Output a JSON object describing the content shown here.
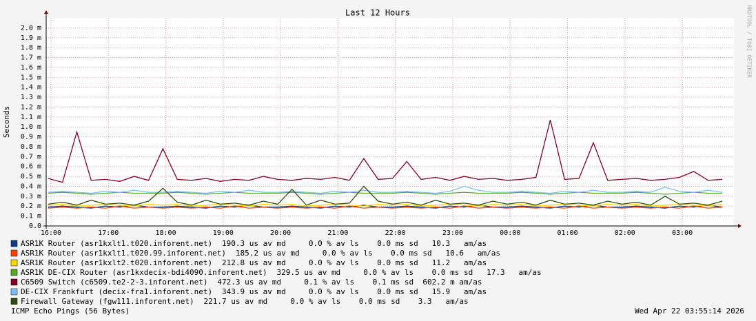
{
  "chart_data": {
    "type": "line",
    "title": "Last 12 Hours",
    "y_label": "Seconds",
    "side_note": "RRDTOOL / TOBI OETIKER",
    "footer_left": "ICMP Echo Pings (56 Bytes)",
    "footer_right": "Wed Apr 22 03:55:14 2026",
    "grid": true,
    "xlim": [
      15.916,
      27.9
    ],
    "xticks": [
      {
        "value": 16,
        "label": "16:00"
      },
      {
        "value": 17,
        "label": "17:00"
      },
      {
        "value": 18,
        "label": "18:00"
      },
      {
        "value": 19,
        "label": "19:00"
      },
      {
        "value": 20,
        "label": "20:00"
      },
      {
        "value": 21,
        "label": "21:00"
      },
      {
        "value": 22,
        "label": "22:00"
      },
      {
        "value": 23,
        "label": "23:00"
      },
      {
        "value": 24,
        "label": "00:00"
      },
      {
        "value": 25,
        "label": "01:00"
      },
      {
        "value": 26,
        "label": "02:00"
      },
      {
        "value": 27,
        "label": "03:00"
      }
    ],
    "ylim": [
      0,
      2.1
    ],
    "yticks": [
      {
        "value": 0,
        "label": "0.0"
      },
      {
        "value": 0.1,
        "label": "0.1 m"
      },
      {
        "value": 0.2,
        "label": "0.2 m"
      },
      {
        "value": 0.3,
        "label": "0.3 m"
      },
      {
        "value": 0.4,
        "label": "0.4 m"
      },
      {
        "value": 0.5,
        "label": "0.5 m"
      },
      {
        "value": 0.6,
        "label": "0.6 m"
      },
      {
        "value": 0.7,
        "label": "0.7 m"
      },
      {
        "value": 0.8,
        "label": "0.8 m"
      },
      {
        "value": 0.9,
        "label": "0.9 m"
      },
      {
        "value": 1.0,
        "label": "1.0 m"
      },
      {
        "value": 1.1,
        "label": "1.1 m"
      },
      {
        "value": 1.2,
        "label": "1.2 m"
      },
      {
        "value": 1.3,
        "label": "1.3 m"
      },
      {
        "value": 1.4,
        "label": "1.4 m"
      },
      {
        "value": 1.5,
        "label": "1.5 m"
      },
      {
        "value": 1.6,
        "label": "1.6 m"
      },
      {
        "value": 1.7,
        "label": "1.7 m"
      },
      {
        "value": 1.8,
        "label": "1.8 m"
      },
      {
        "value": 1.9,
        "label": "1.9 m"
      },
      {
        "value": 2.0,
        "label": "2.0 m"
      }
    ],
    "x": [
      15.95,
      16.2,
      16.45,
      16.7,
      16.95,
      17.2,
      17.45,
      17.7,
      17.95,
      18.2,
      18.45,
      18.7,
      18.95,
      19.2,
      19.45,
      19.7,
      19.95,
      20.2,
      20.45,
      20.7,
      20.95,
      21.2,
      21.45,
      21.7,
      21.95,
      22.2,
      22.45,
      22.7,
      22.95,
      23.2,
      23.45,
      23.7,
      23.95,
      24.2,
      24.45,
      24.7,
      24.95,
      25.2,
      25.45,
      25.7,
      25.95,
      26.2,
      26.45,
      26.7,
      26.95,
      27.2,
      27.45,
      27.7
    ],
    "series": [
      {
        "name": "ASR1K Router (asr1kxlt1.t020.inforent.net)",
        "stats": "190.3 us av md     0.0 % av ls    0.0 ms sd   10.3   am/as",
        "color": "#0b3c8c",
        "values": [
          0.19,
          0.2,
          0.19,
          0.18,
          0.2,
          0.19,
          0.21,
          0.19,
          0.19,
          0.2,
          0.19,
          0.18,
          0.2,
          0.19,
          0.21,
          0.19,
          0.19,
          0.2,
          0.19,
          0.18,
          0.2,
          0.19,
          0.21,
          0.19,
          0.19,
          0.2,
          0.19,
          0.18,
          0.2,
          0.19,
          0.21,
          0.19,
          0.19,
          0.2,
          0.19,
          0.18,
          0.2,
          0.19,
          0.21,
          0.19,
          0.19,
          0.2,
          0.19,
          0.18,
          0.2,
          0.19,
          0.21,
          0.19
        ]
      },
      {
        "name": "ASR1K Router (asr1kxlt1.t020.99.inforent.net)",
        "stats": "185.2 us av md     0.0 % av ls    0.0 ms sd   10.6   am/as",
        "color": "#ff4000",
        "values": [
          0.18,
          0.19,
          0.18,
          0.19,
          0.18,
          0.2,
          0.18,
          0.19,
          0.18,
          0.19,
          0.18,
          0.19,
          0.18,
          0.2,
          0.18,
          0.19,
          0.18,
          0.19,
          0.18,
          0.19,
          0.18,
          0.2,
          0.18,
          0.19,
          0.18,
          0.19,
          0.18,
          0.19,
          0.18,
          0.2,
          0.18,
          0.19,
          0.18,
          0.19,
          0.18,
          0.19,
          0.18,
          0.2,
          0.18,
          0.19,
          0.18,
          0.19,
          0.18,
          0.19,
          0.18,
          0.2,
          0.18,
          0.19
        ]
      },
      {
        "name": "ASR1K Router (asr1kxlt2.t020.inforent.net)",
        "stats": "212.8 us av md     0.0 % av ls    0.0 ms sd   11.2   am/as",
        "color": "#ffd700",
        "values": [
          0.21,
          0.22,
          0.2,
          0.21,
          0.22,
          0.21,
          0.2,
          0.22,
          0.21,
          0.22,
          0.2,
          0.21,
          0.22,
          0.21,
          0.2,
          0.22,
          0.21,
          0.22,
          0.2,
          0.21,
          0.22,
          0.21,
          0.2,
          0.22,
          0.21,
          0.22,
          0.2,
          0.21,
          0.22,
          0.21,
          0.2,
          0.22,
          0.21,
          0.22,
          0.2,
          0.21,
          0.22,
          0.21,
          0.2,
          0.22,
          0.21,
          0.22,
          0.2,
          0.21,
          0.22,
          0.21,
          0.2,
          0.22
        ]
      },
      {
        "name": "ASR1K DE-CIX Router (asr1kxdecix-bdi4090.inforent.net)",
        "stats": "329.5 us av md     0.0 % av ls    0.0 ms sd   17.3   am/as",
        "color": "#55aa22",
        "values": [
          0.33,
          0.34,
          0.33,
          0.32,
          0.33,
          0.34,
          0.33,
          0.33,
          0.33,
          0.34,
          0.33,
          0.32,
          0.33,
          0.34,
          0.33,
          0.33,
          0.33,
          0.34,
          0.33,
          0.32,
          0.33,
          0.34,
          0.33,
          0.33,
          0.33,
          0.34,
          0.33,
          0.32,
          0.33,
          0.34,
          0.33,
          0.33,
          0.33,
          0.34,
          0.33,
          0.32,
          0.33,
          0.34,
          0.33,
          0.33,
          0.33,
          0.34,
          0.33,
          0.32,
          0.33,
          0.34,
          0.33,
          0.33
        ]
      },
      {
        "name": "C6509 Switch (c6509.te2-2-3.inforent.net)",
        "stats": "472.3 us av md     0.1 % av ls    0.1 ms sd  602.2 m am/as",
        "color": "#7f0020",
        "values": [
          0.48,
          0.44,
          0.95,
          0.46,
          0.47,
          0.45,
          0.5,
          0.46,
          0.78,
          0.47,
          0.46,
          0.48,
          0.45,
          0.47,
          0.46,
          0.5,
          0.47,
          0.46,
          0.48,
          0.47,
          0.49,
          0.46,
          0.68,
          0.47,
          0.48,
          0.65,
          0.47,
          0.49,
          0.46,
          0.5,
          0.47,
          0.48,
          0.46,
          0.47,
          0.49,
          1.07,
          0.47,
          0.48,
          0.84,
          0.46,
          0.47,
          0.48,
          0.46,
          0.47,
          0.49,
          0.55,
          0.46,
          0.47
        ]
      },
      {
        "name": "DE-CIX Frankfurt (decix-fra1.inforent.net)",
        "stats": "343.9 us av md     0.0 % av ls    0.0 ms sd   15.9   am/as",
        "color": "#7fbfff",
        "values": [
          0.34,
          0.35,
          0.34,
          0.33,
          0.35,
          0.34,
          0.36,
          0.34,
          0.34,
          0.35,
          0.34,
          0.33,
          0.35,
          0.34,
          0.36,
          0.34,
          0.34,
          0.35,
          0.34,
          0.33,
          0.35,
          0.34,
          0.36,
          0.34,
          0.34,
          0.35,
          0.34,
          0.33,
          0.35,
          0.4,
          0.36,
          0.34,
          0.34,
          0.35,
          0.34,
          0.33,
          0.35,
          0.34,
          0.36,
          0.34,
          0.34,
          0.35,
          0.34,
          0.39,
          0.35,
          0.34,
          0.36,
          0.34
        ]
      },
      {
        "name": "Firewall Gateway (fgw111.inforent.net)",
        "stats": "221.7 us av md     0.0 % av ls    0.0 ms sd    3.3   am/as",
        "color": "#2f4f10",
        "values": [
          0.22,
          0.24,
          0.21,
          0.26,
          0.22,
          0.23,
          0.21,
          0.25,
          0.38,
          0.24,
          0.21,
          0.26,
          0.22,
          0.23,
          0.21,
          0.25,
          0.22,
          0.37,
          0.21,
          0.26,
          0.22,
          0.23,
          0.4,
          0.25,
          0.22,
          0.24,
          0.21,
          0.26,
          0.22,
          0.23,
          0.21,
          0.25,
          0.22,
          0.24,
          0.21,
          0.26,
          0.22,
          0.23,
          0.21,
          0.25,
          0.22,
          0.24,
          0.21,
          0.3,
          0.22,
          0.23,
          0.21,
          0.25
        ]
      }
    ]
  }
}
